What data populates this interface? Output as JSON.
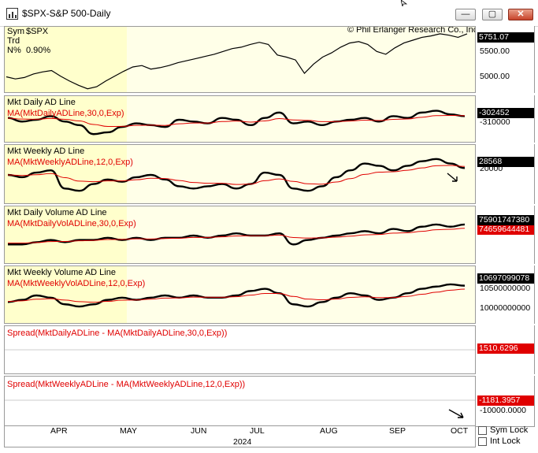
{
  "window": {
    "title": "$SPX-S&P 500-Daily",
    "minimize_glyph": "—",
    "restore_glyph": "▢",
    "close_glyph": "✕"
  },
  "colors": {
    "price": "#000000",
    "indicator": "#000000",
    "moving_average": "#e00000",
    "positive": "#22dd22",
    "negative": "#ee1111"
  },
  "panes": [
    {
      "key": "price",
      "label_sym": "Sym",
      "sym_value": "$SPX",
      "label_trd": "Trd",
      "label_n": "N%",
      "n_value": "0.90%",
      "copyright": "© Phil Erlanger Research Co., Inc.",
      "value_badge": "5751.07",
      "ticks": [
        "5500.00",
        "5000.00"
      ]
    },
    {
      "key": "daily_ad",
      "title": "Mkt Daily AD Line",
      "ma_label": "MA(MktDailyADLine,30,0,Exp)",
      "value_badge": "-302452",
      "ticks": [
        "-310000"
      ]
    },
    {
      "key": "weekly_ad",
      "title": "Mkt Weekly AD Line",
      "ma_label": "MA(MktWeeklyADLine,12,0,Exp)",
      "value_badge": "28568",
      "ticks": [
        "20000"
      ]
    },
    {
      "key": "daily_vol_ad",
      "title": "Mkt Daily Volume AD Line",
      "ma_label": "MA(MktDailyVolADLine,30,0,Exp)",
      "value_badge": "75901747380",
      "value_badge2": "74659644481",
      "ticks": []
    },
    {
      "key": "weekly_vol_ad",
      "title": "Mkt Weekly Volume AD Line",
      "ma_label": "MA(MktWeeklyVolADLine,12,0,Exp)",
      "value_badge": "10697099078",
      "ticks": [
        "10500000000",
        "10000000000"
      ]
    },
    {
      "key": "spread_daily",
      "title": "Spread(MktDailyADLine - MA(MktDailyADLine,30,0,Exp))",
      "value_badge": "1510.6296",
      "ticks": []
    },
    {
      "key": "spread_weekly",
      "title": "Spread(MktWeeklyADLine - MA(MktWeeklyADLine,12,0,Exp))",
      "value_badge": "-1181.3957",
      "ticks": [
        "-10000.0000"
      ]
    }
  ],
  "x_axis": {
    "months": [
      "APR",
      "MAY",
      "JUN",
      "JUL",
      "AUG",
      "SEP",
      "OCT"
    ],
    "year": "2024"
  },
  "controls": {
    "sym_lock": "Sym Lock",
    "int_lock": "Int Lock"
  },
  "chart_data": [
    {
      "type": "line",
      "title": "$SPX-S&P 500-Daily",
      "series": [
        {
          "name": "$SPX",
          "values": [
            5140,
            5110,
            5130,
            5180,
            5210,
            5230,
            5150,
            5080,
            5020,
            4970,
            5000,
            5080,
            5150,
            5220,
            5280,
            5300,
            5250,
            5270,
            5300,
            5340,
            5370,
            5400,
            5430,
            5460,
            5500,
            5540,
            5560,
            5600,
            5630,
            5600,
            5450,
            5420,
            5380,
            5190,
            5320,
            5420,
            5480,
            5560,
            5620,
            5640,
            5600,
            5500,
            5460,
            5550,
            5620,
            5660,
            5700,
            5720,
            5750,
            5730,
            5700,
            5751
          ]
        }
      ],
      "ylim": [
        4900,
        5850
      ]
    },
    {
      "type": "line",
      "title": "Mkt Daily AD Line",
      "series": [
        {
          "name": "Mkt Daily AD Line"
        },
        {
          "name": "MA(MktDailyADLine,30,0,Exp)"
        }
      ]
    },
    {
      "type": "line",
      "title": "Mkt Weekly AD Line",
      "series": [
        {
          "name": "Mkt Weekly AD Line"
        },
        {
          "name": "MA(MktWeeklyADLine,12,0,Exp)"
        }
      ]
    },
    {
      "type": "line",
      "title": "Mkt Daily Volume AD Line",
      "series": [
        {
          "name": "Mkt Daily Volume AD Line"
        },
        {
          "name": "MA(MktDailyVolADLine,30,0,Exp)"
        }
      ]
    },
    {
      "type": "line",
      "title": "Mkt Weekly Volume AD Line",
      "series": [
        {
          "name": "Mkt Weekly Volume AD Line"
        },
        {
          "name": "MA(MktWeeklyVolADLine,12,0,Exp)"
        }
      ]
    },
    {
      "type": "area",
      "title": "Spread(MktDailyADLine - MA(MktDailyADLine,30,0,Exp))"
    },
    {
      "type": "area",
      "title": "Spread(MktWeeklyADLine - MA(MktWeeklyADLine,12,0,Exp))"
    }
  ]
}
